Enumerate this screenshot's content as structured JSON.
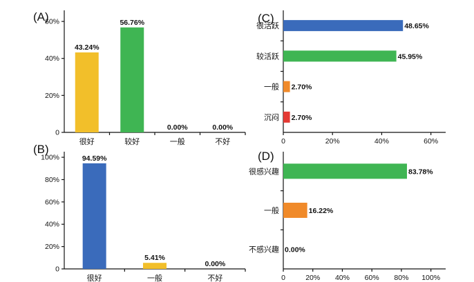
{
  "colors": {
    "yellow": "#f2bf2a",
    "green": "#3fb553",
    "blue": "#3a6bbb",
    "orange": "#f08a2a",
    "red": "#e43a34"
  },
  "chart_data": [
    {
      "id": "A",
      "panel_label": "(A)",
      "type": "bar",
      "orientation": "vertical",
      "categories": [
        "很好",
        "较好",
        "一般",
        "不好"
      ],
      "values": [
        43.24,
        56.76,
        0.0,
        0.0
      ],
      "value_labels": [
        "43.24%",
        "56.76%",
        "0.00%",
        "0.00%"
      ],
      "bar_colors": [
        "#f2bf2a",
        "#3fb553",
        "#3a6bbb",
        "#3a6bbb"
      ],
      "ylim": [
        0,
        66
      ],
      "ticks": [
        0,
        20,
        40,
        60
      ],
      "tick_labels": [
        "0",
        "20%",
        "40%",
        "60%"
      ]
    },
    {
      "id": "B",
      "panel_label": "(B)",
      "type": "bar",
      "orientation": "vertical",
      "categories": [
        "很好",
        "一般",
        "不好"
      ],
      "values": [
        94.59,
        5.41,
        0.0
      ],
      "value_labels": [
        "94.59%",
        "5.41%",
        "0.00%"
      ],
      "bar_colors": [
        "#3a6bbb",
        "#f2bf2a",
        "#3a6bbb"
      ],
      "ylim": [
        0,
        105
      ],
      "ticks": [
        0,
        20,
        40,
        60,
        80,
        100
      ],
      "tick_labels": [
        "0",
        "20%",
        "40%",
        "60%",
        "80%",
        "100%"
      ]
    },
    {
      "id": "C",
      "panel_label": "(C)",
      "type": "bar",
      "orientation": "horizontal",
      "categories": [
        "很活跃",
        "较活跃",
        "一般",
        "沉闷"
      ],
      "values": [
        48.65,
        45.95,
        2.7,
        2.7
      ],
      "value_labels": [
        "48.65%",
        "45.95%",
        "2.70%",
        "2.70%"
      ],
      "bar_colors": [
        "#3a6bbb",
        "#3fb553",
        "#f08a2a",
        "#e43a34"
      ],
      "xlim": [
        0,
        66
      ],
      "ticks": [
        0,
        20,
        40,
        60
      ],
      "tick_labels": [
        "0",
        "20%",
        "40%",
        "60%"
      ]
    },
    {
      "id": "D",
      "panel_label": "(D)",
      "type": "bar",
      "orientation": "horizontal",
      "categories": [
        "很感兴趣",
        "一般",
        "不感兴趣"
      ],
      "values": [
        83.78,
        16.22,
        0.0
      ],
      "value_labels": [
        "83.78%",
        "16.22%",
        "0.00%"
      ],
      "bar_colors": [
        "#3fb553",
        "#f08a2a",
        "#3a6bbb"
      ],
      "xlim": [
        0,
        110
      ],
      "ticks": [
        0,
        20,
        40,
        60,
        80,
        100
      ],
      "tick_labels": [
        "0",
        "20%",
        "40%",
        "60%",
        "80%",
        "100%"
      ]
    }
  ]
}
